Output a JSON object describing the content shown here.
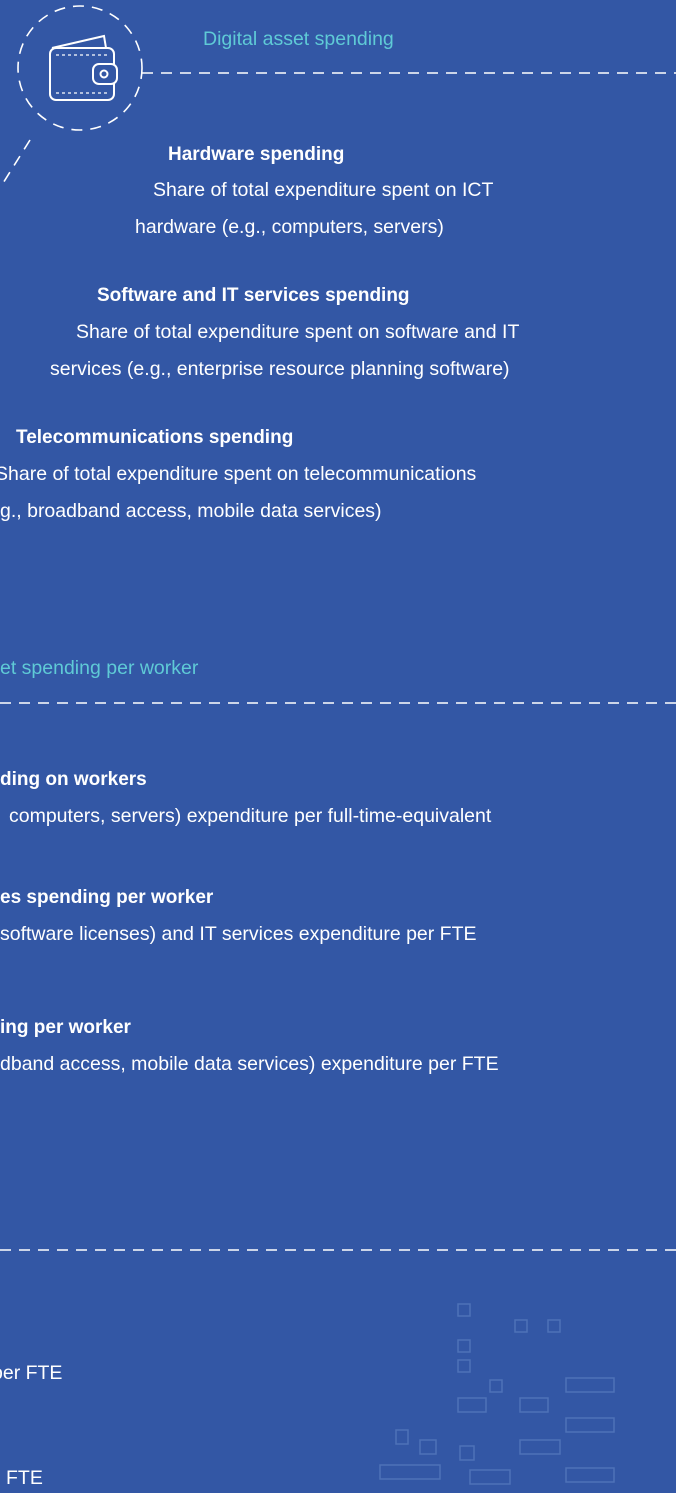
{
  "section1": {
    "label": "Digital asset spending",
    "items": [
      {
        "title": "Hardware spending",
        "lines": [
          "Share of total expenditure spent on ICT",
          "hardware (e.g., computers, servers)"
        ]
      },
      {
        "title": "Software and IT services spending",
        "lines": [
          "Share of total expenditure spent on software and IT",
          "services (e.g., enterprise resource planning software)"
        ]
      },
      {
        "title": "Telecommunications spending",
        "lines": [
          "Share of total expenditure spent on telecommunications",
          "g., broadband access, mobile data services)"
        ]
      }
    ]
  },
  "section2": {
    "label": "et spending per worker",
    "items": [
      {
        "title": "ding on workers",
        "lines": [
          "computers, servers) expenditure per full-time-equivalent"
        ]
      },
      {
        "title": "es spending per worker",
        "lines": [
          "software licenses) and IT services expenditure per FTE"
        ]
      },
      {
        "title": "ing per worker",
        "lines": [
          "dband access, mobile data services) expenditure per FTE"
        ]
      }
    ]
  },
  "section3": {
    "lines": [
      "per FTE",
      "FTE"
    ]
  }
}
